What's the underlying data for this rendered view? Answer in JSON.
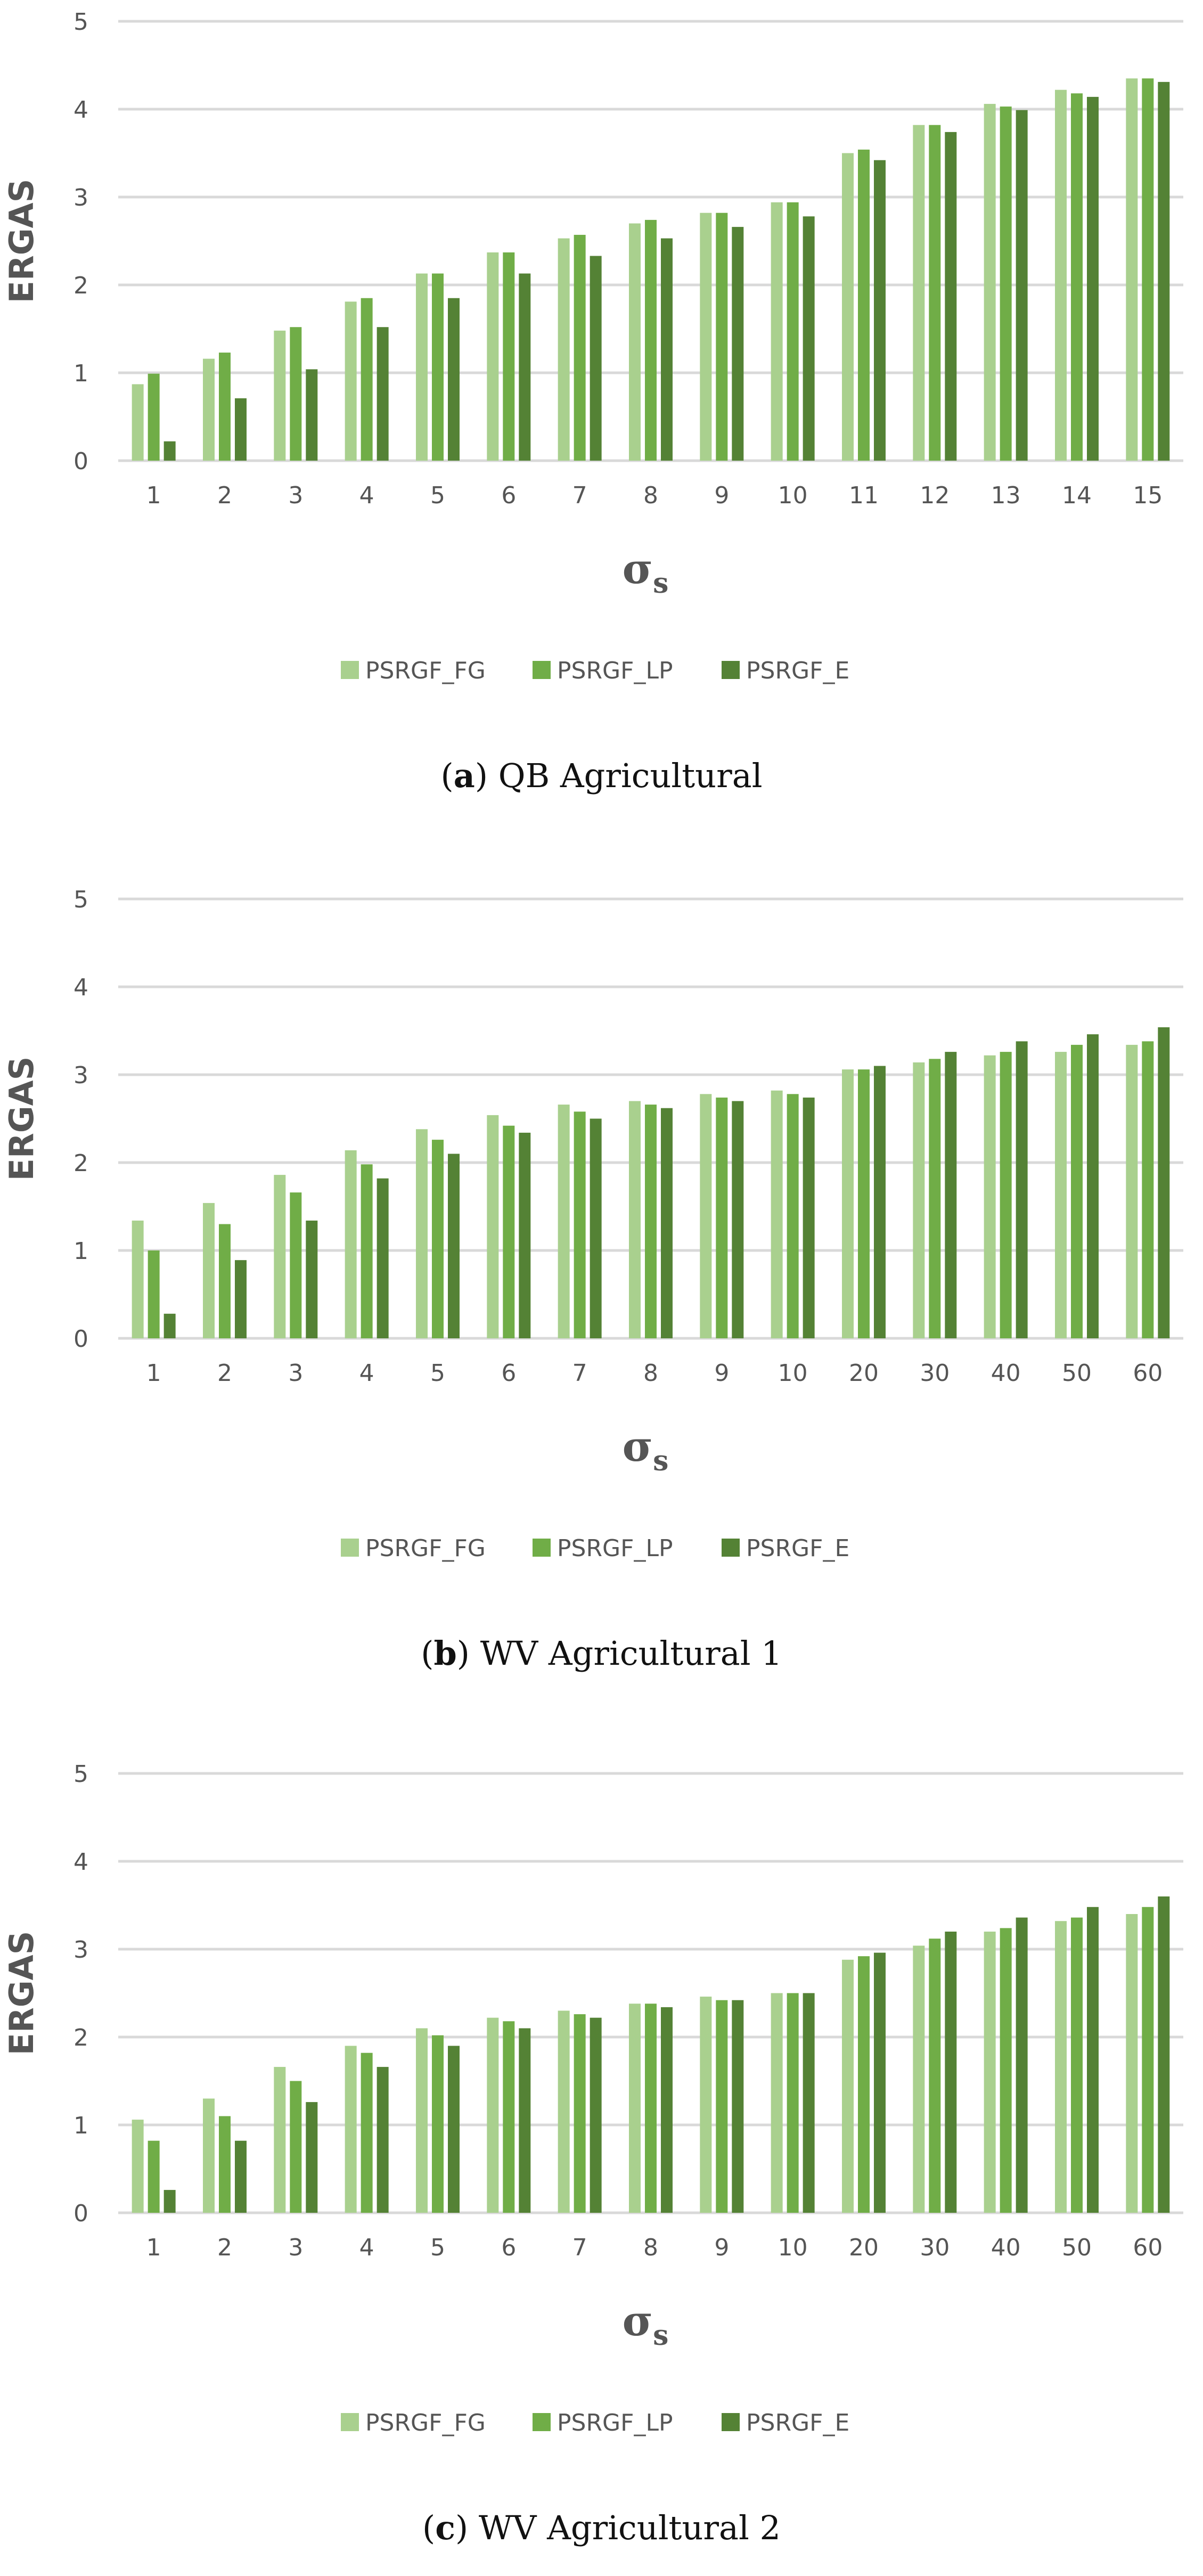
{
  "colors": {
    "PSRGF_FG": "#a9d08e",
    "PSRGF_LP": "#70ad47",
    "PSRGF_E": "#548235",
    "grid": "#d9d9d9",
    "text": "#595959"
  },
  "panels": [
    {
      "caption_letter": "a",
      "caption_text": "QB Agricultural",
      "chart_data": {
        "type": "bar",
        "xlabel": "σ",
        "xlabel_sub": "s",
        "ylabel": "ERGAS",
        "ylim": [
          0,
          5
        ],
        "yticks": [
          "0",
          "1",
          "2",
          "3",
          "4",
          "5"
        ],
        "categories": [
          "1",
          "2",
          "3",
          "4",
          "5",
          "6",
          "7",
          "8",
          "9",
          "10",
          "11",
          "12",
          "13",
          "14",
          "15"
        ],
        "series": [
          {
            "name": "PSRGF_FG",
            "values": [
              0.87,
              1.16,
              1.48,
              1.81,
              2.13,
              2.37,
              2.53,
              2.7,
              2.82,
              2.94,
              3.5,
              3.82,
              4.06,
              4.22,
              4.35
            ]
          },
          {
            "name": "PSRGF_LP",
            "values": [
              0.99,
              1.23,
              1.52,
              1.85,
              2.13,
              2.37,
              2.57,
              2.74,
              2.82,
              2.94,
              3.54,
              3.82,
              4.03,
              4.18,
              4.35
            ]
          },
          {
            "name": "PSRGF_E",
            "values": [
              0.22,
              0.71,
              1.04,
              1.52,
              1.85,
              2.13,
              2.33,
              2.53,
              2.66,
              2.78,
              3.42,
              3.74,
              3.99,
              4.14,
              4.31
            ]
          }
        ],
        "grid": true,
        "legend_position": "bottom"
      }
    },
    {
      "caption_letter": "b",
      "caption_text": "WV Agricultural 1",
      "chart_data": {
        "type": "bar",
        "xlabel": "σ",
        "xlabel_sub": "s",
        "ylabel": "ERGAS",
        "ylim": [
          0,
          5
        ],
        "yticks": [
          "0",
          "1",
          "2",
          "3",
          "4",
          "5"
        ],
        "categories": [
          "1",
          "2",
          "3",
          "4",
          "5",
          "6",
          "7",
          "8",
          "9",
          "10",
          "20",
          "30",
          "40",
          "50",
          "60"
        ],
        "series": [
          {
            "name": "PSRGF_FG",
            "values": [
              1.34,
              1.54,
              1.86,
              2.14,
              2.38,
              2.54,
              2.66,
              2.7,
              2.78,
              2.82,
              3.06,
              3.14,
              3.22,
              3.26,
              3.34
            ]
          },
          {
            "name": "PSRGF_LP",
            "values": [
              1.0,
              1.3,
              1.66,
              1.98,
              2.26,
              2.42,
              2.58,
              2.66,
              2.74,
              2.78,
              3.06,
              3.18,
              3.26,
              3.34,
              3.38
            ]
          },
          {
            "name": "PSRGF_E",
            "values": [
              0.28,
              0.89,
              1.34,
              1.82,
              2.1,
              2.34,
              2.5,
              2.62,
              2.7,
              2.74,
              3.1,
              3.26,
              3.38,
              3.46,
              3.54
            ]
          }
        ],
        "grid": true,
        "legend_position": "bottom"
      }
    },
    {
      "caption_letter": "c",
      "caption_text": "WV Agricultural 2",
      "chart_data": {
        "type": "bar",
        "xlabel": "σ",
        "xlabel_sub": "s",
        "ylabel": "ERGAS",
        "ylim": [
          0,
          5
        ],
        "yticks": [
          "0",
          "1",
          "2",
          "3",
          "4",
          "5"
        ],
        "categories": [
          "1",
          "2",
          "3",
          "4",
          "5",
          "6",
          "7",
          "8",
          "9",
          "10",
          "20",
          "30",
          "40",
          "50",
          "60"
        ],
        "series": [
          {
            "name": "PSRGF_FG",
            "values": [
              1.06,
              1.3,
              1.66,
              1.9,
              2.1,
              2.22,
              2.3,
              2.38,
              2.46,
              2.5,
              2.88,
              3.04,
              3.2,
              3.32,
              3.4
            ]
          },
          {
            "name": "PSRGF_LP",
            "values": [
              0.82,
              1.1,
              1.5,
              1.82,
              2.02,
              2.18,
              2.26,
              2.38,
              2.42,
              2.5,
              2.92,
              3.12,
              3.24,
              3.36,
              3.48
            ]
          },
          {
            "name": "PSRGF_E",
            "values": [
              0.26,
              0.82,
              1.26,
              1.66,
              1.9,
              2.1,
              2.22,
              2.34,
              2.42,
              2.5,
              2.96,
              3.2,
              3.36,
              3.48,
              3.6
            ]
          }
        ],
        "grid": true,
        "legend_position": "bottom"
      }
    }
  ]
}
